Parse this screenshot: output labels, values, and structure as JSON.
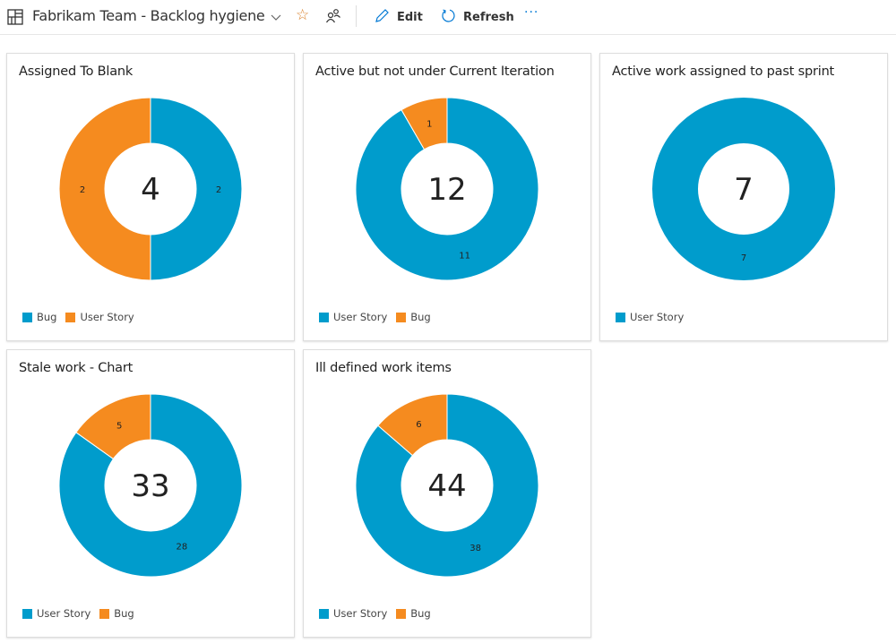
{
  "header": {
    "title": "Fabrikam Team - Backlog hygiene",
    "edit_label": "Edit",
    "refresh_label": "Refresh",
    "more_label": "···",
    "icons": [
      "dashboard-icon",
      "chevron-down-icon",
      "star-icon",
      "team-icon",
      "pencil-icon",
      "refresh-icon",
      "more-icon"
    ]
  },
  "colors": {
    "User Story": "#F58B1F",
    "Bug": "#009CCC",
    "User Story Blue": "#009CCC"
  },
  "widgets": [
    {
      "title": "Assigned To Blank",
      "total": "4",
      "legend": [
        {
          "label": "Bug",
          "color": "#009CCC"
        },
        {
          "label": "User Story",
          "color": "#F58B1F"
        }
      ]
    },
    {
      "title": "Active but not under Current Iteration",
      "total": "12",
      "legend": [
        {
          "label": "User Story",
          "color": "#009CCC"
        },
        {
          "label": "Bug",
          "color": "#F58B1F"
        }
      ]
    },
    {
      "title": "Active work assigned to past sprint",
      "total": "7",
      "legend": [
        {
          "label": "User Story",
          "color": "#009CCC"
        }
      ]
    },
    {
      "title": "Stale work - Chart",
      "total": "33",
      "legend": [
        {
          "label": "User Story",
          "color": "#009CCC"
        },
        {
          "label": "Bug",
          "color": "#F58B1F"
        }
      ]
    },
    {
      "title": "Ill defined work items",
      "total": "44",
      "legend": [
        {
          "label": "User Story",
          "color": "#009CCC"
        },
        {
          "label": "Bug",
          "color": "#F58B1F"
        }
      ]
    }
  ],
  "chart_data": [
    {
      "type": "pie",
      "title": "Assigned To Blank",
      "categories": [
        "Bug",
        "User Story"
      ],
      "values": [
        2,
        2
      ],
      "colors": [
        "#009CCC",
        "#F58B1F"
      ],
      "legend": "bottom-left"
    },
    {
      "type": "pie",
      "title": "Active but not under Current Iteration",
      "categories": [
        "User Story",
        "Bug"
      ],
      "values": [
        11,
        1
      ],
      "colors": [
        "#009CCC",
        "#F58B1F"
      ],
      "legend": "bottom-left"
    },
    {
      "type": "pie",
      "title": "Active work assigned to past sprint",
      "categories": [
        "User Story"
      ],
      "values": [
        7
      ],
      "colors": [
        "#009CCC"
      ],
      "legend": "bottom-left"
    },
    {
      "type": "pie",
      "title": "Stale work - Chart",
      "categories": [
        "User Story",
        "Bug"
      ],
      "values": [
        28,
        5
      ],
      "colors": [
        "#009CCC",
        "#F58B1F"
      ],
      "legend": "bottom-left"
    },
    {
      "type": "pie",
      "title": "Ill defined work items",
      "categories": [
        "User Story",
        "Bug"
      ],
      "values": [
        38,
        6
      ],
      "colors": [
        "#009CCC",
        "#F58B1F"
      ],
      "legend": "bottom-left"
    }
  ]
}
